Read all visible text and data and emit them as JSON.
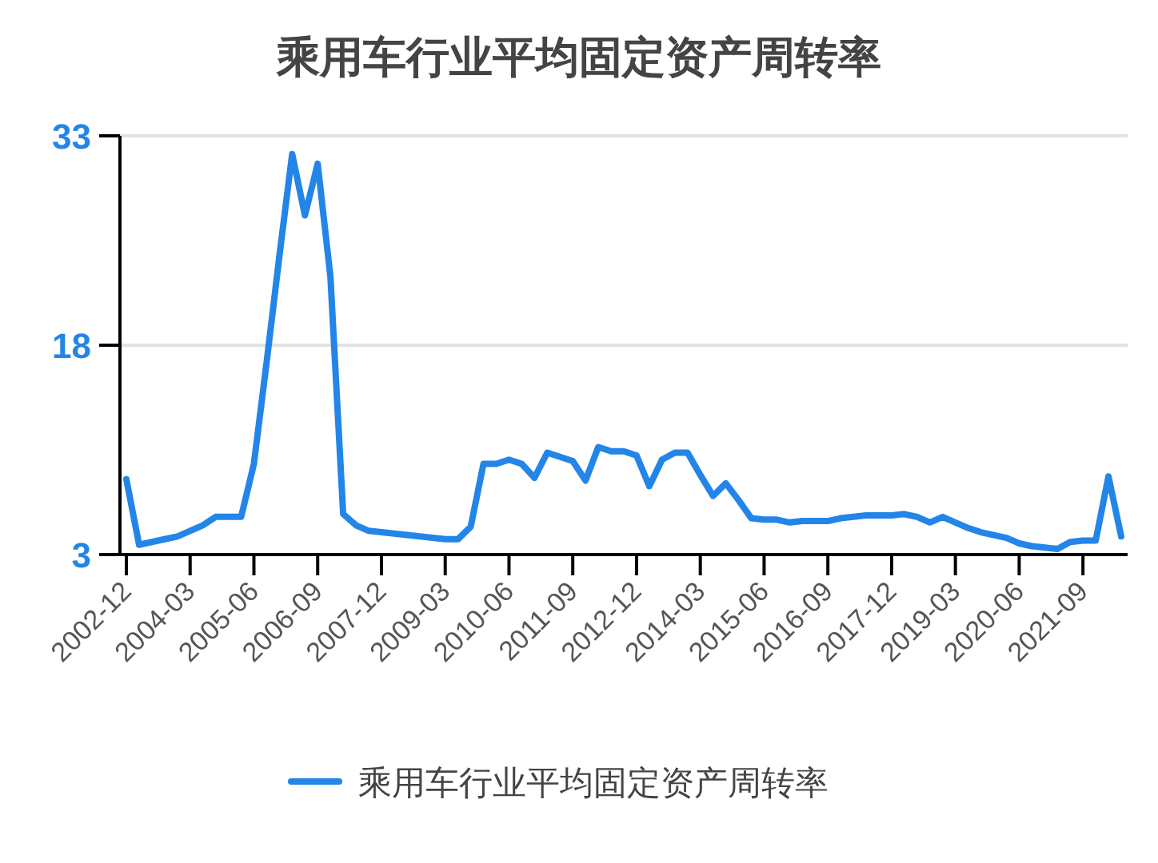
{
  "chart_data": {
    "type": "line",
    "title": "乘用车行业平均固定资产周转率",
    "categories": [
      "2002-12",
      null,
      null,
      null,
      null,
      "2004-03",
      null,
      null,
      null,
      null,
      "2005-06",
      null,
      null,
      null,
      null,
      "2006-09",
      null,
      null,
      null,
      null,
      "2007-12",
      null,
      null,
      null,
      null,
      "2009-03",
      null,
      null,
      null,
      null,
      "2010-06",
      null,
      null,
      null,
      null,
      "2011-09",
      null,
      null,
      null,
      null,
      "2012-12",
      null,
      null,
      null,
      null,
      "2014-03",
      null,
      null,
      null,
      null,
      "2015-06",
      null,
      null,
      null,
      null,
      "2016-09",
      null,
      null,
      null,
      null,
      "2017-12",
      null,
      null,
      null,
      null,
      "2019-03",
      null,
      null,
      null,
      null,
      "2020-06",
      null,
      null,
      null,
      null,
      "2021-09",
      null,
      null,
      null
    ],
    "series": [
      {
        "name": "乘用车行业平均固定资产周转率",
        "color": "#2385e8",
        "values": [
          8.4,
          3.7,
          3.9,
          4.1,
          4.3,
          4.7,
          5.1,
          5.7,
          5.7,
          5.7,
          9.5,
          16.8,
          24.4,
          31.7,
          27.3,
          31.0,
          22.9,
          5.9,
          5.1,
          4.7,
          4.6,
          4.5,
          4.4,
          4.3,
          4.2,
          4.1,
          4.1,
          5.0,
          9.5,
          9.5,
          9.8,
          9.5,
          8.5,
          10.3,
          10.0,
          9.7,
          8.3,
          10.7,
          10.4,
          10.4,
          10.1,
          7.9,
          9.8,
          10.3,
          10.3,
          8.7,
          7.2,
          8.1,
          6.9,
          5.6,
          5.5,
          5.5,
          5.3,
          5.4,
          5.4,
          5.4,
          5.6,
          5.7,
          5.8,
          5.8,
          5.8,
          5.9,
          5.7,
          5.3,
          5.7,
          5.3,
          4.9,
          4.6,
          4.4,
          4.2,
          3.8,
          3.6,
          3.5,
          3.4,
          3.9,
          4.0,
          4.0,
          8.6,
          4.3
        ]
      }
    ],
    "ylim": [
      3,
      33
    ],
    "yticks": [
      3,
      18,
      33
    ],
    "grid": "y",
    "legend": "bottom",
    "marker": "none",
    "line_style": "solid"
  }
}
